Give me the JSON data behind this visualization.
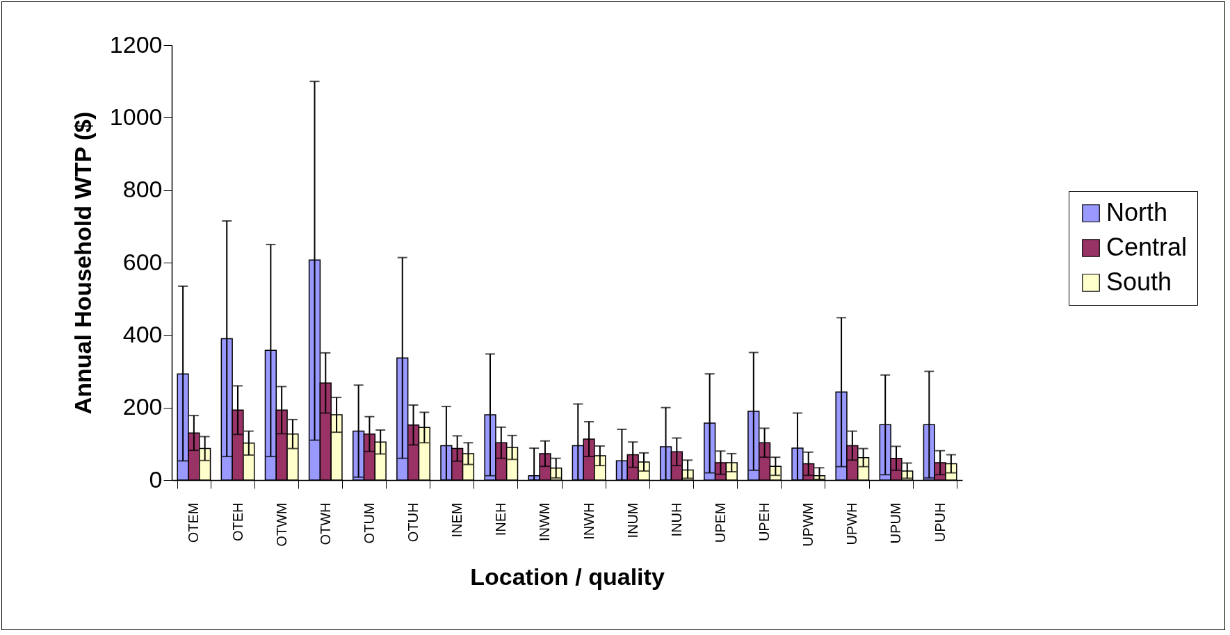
{
  "chart_data": {
    "type": "bar",
    "xlabel": "Location / quality",
    "ylabel": "Annual Household WTP ($)",
    "categories": [
      "OTEM",
      "OTEH",
      "OTWM",
      "OTWH",
      "OTUM",
      "OTUH",
      "INEM",
      "INEH",
      "INWM",
      "INWH",
      "INUM",
      "INUH",
      "UPEM",
      "UPEH",
      "UPWM",
      "UPWH",
      "UPUM",
      "UPUH"
    ],
    "series": [
      {
        "name": "North",
        "color": "#9999ff",
        "values": [
          293,
          390,
          358,
          607,
          135,
          337,
          95,
          180,
          12,
          95,
          53,
          92,
          157,
          190,
          88,
          243,
          153,
          153
        ],
        "errors": [
          [
            53,
            535
          ],
          [
            65,
            715
          ],
          [
            65,
            650
          ],
          [
            110,
            1100
          ],
          [
            8,
            262
          ],
          [
            60,
            614
          ],
          [
            0,
            203
          ],
          [
            12,
            348
          ],
          [
            0,
            88
          ],
          [
            0,
            210
          ],
          [
            0,
            140
          ],
          [
            0,
            200
          ],
          [
            20,
            293
          ],
          [
            27,
            352
          ],
          [
            0,
            185
          ],
          [
            37,
            448
          ],
          [
            15,
            290
          ],
          [
            6,
            300
          ]
        ]
      },
      {
        "name": "Central",
        "color": "#993366",
        "values": [
          130,
          193,
          193,
          268,
          127,
          152,
          87,
          103,
          73,
          113,
          70,
          78,
          48,
          103,
          45,
          95,
          60,
          48
        ],
        "errors": [
          [
            82,
            178
          ],
          [
            126,
            260
          ],
          [
            128,
            258
          ],
          [
            185,
            351
          ],
          [
            79,
            175
          ],
          [
            97,
            207
          ],
          [
            52,
            122
          ],
          [
            60,
            146
          ],
          [
            38,
            108
          ],
          [
            65,
            161
          ],
          [
            35,
            105
          ],
          [
            40,
            116
          ],
          [
            16,
            80
          ],
          [
            63,
            143
          ],
          [
            13,
            77
          ],
          [
            55,
            135
          ],
          [
            27,
            93
          ],
          [
            15,
            81
          ]
        ]
      },
      {
        "name": "South",
        "color": "#ffffcc",
        "values": [
          87,
          102,
          127,
          180,
          105,
          145,
          73,
          90,
          33,
          67,
          50,
          28,
          48,
          38,
          12,
          62,
          25,
          45
        ],
        "errors": [
          [
            54,
            120
          ],
          [
            69,
            135
          ],
          [
            87,
            167
          ],
          [
            132,
            228
          ],
          [
            72,
            138
          ],
          [
            103,
            187
          ],
          [
            43,
            103
          ],
          [
            57,
            123
          ],
          [
            6,
            60
          ],
          [
            40,
            94
          ],
          [
            25,
            75
          ],
          [
            5,
            55
          ],
          [
            23,
            73
          ],
          [
            13,
            63
          ],
          [
            2,
            34
          ],
          [
            37,
            87
          ],
          [
            5,
            47
          ],
          [
            20,
            70
          ]
        ]
      }
    ],
    "ylim": [
      0,
      1200
    ],
    "yticks": [
      0,
      200,
      400,
      600,
      800,
      1000,
      1200
    ],
    "grid": false,
    "legend": "right"
  }
}
